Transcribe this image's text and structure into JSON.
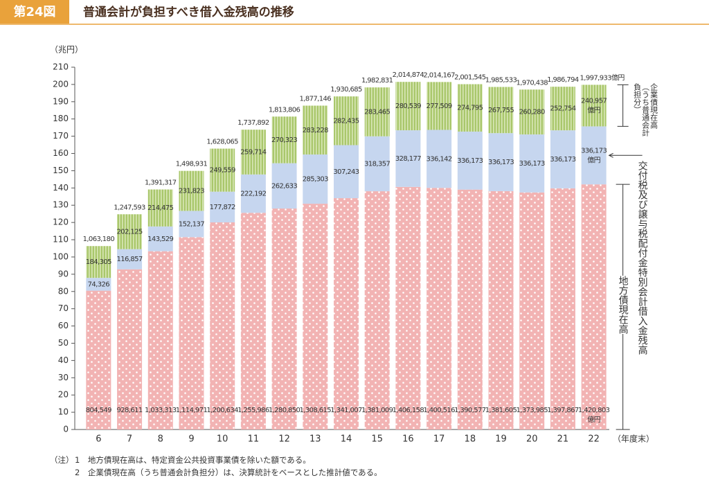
{
  "chart_data": {
    "type": "stacked-bar",
    "figure_number": "第24図",
    "title": "普通会計が負担すべき借入金残高の推移",
    "y_axis_label": "（兆円）",
    "x_axis_label": "（年度末）",
    "categories": [
      "6",
      "7",
      "8",
      "9",
      "10",
      "11",
      "12",
      "13",
      "14",
      "15",
      "16",
      "17",
      "18",
      "19",
      "20",
      "21",
      "22"
    ],
    "ylim": [
      0,
      210
    ],
    "yticks": [
      0,
      10,
      20,
      30,
      40,
      50,
      60,
      70,
      80,
      90,
      100,
      110,
      120,
      130,
      140,
      150,
      160,
      170,
      180,
      190,
      200,
      210
    ],
    "unit_note": "億円",
    "series": [
      {
        "name": "地方債現在高",
        "color": "#f2b3b3",
        "values": [
          80.4549,
          92.8611,
          103.3313,
          111.4971,
          120.0634,
          125.5986,
          128.085,
          130.8615,
          134.1007,
          138.1009,
          140.6158,
          140.0516,
          139.0577,
          138.1605,
          137.3985,
          139.7867,
          142.0803
        ],
        "value_labels": [
          "804,549",
          "928,611",
          "1,033,313",
          "1,114,971",
          "1,200,634",
          "1,255,986",
          "1,280,850",
          "1,308,615",
          "1,341,007",
          "1,381,009",
          "1,406,158",
          "1,400,516",
          "1,390,577",
          "1,381,605",
          "1,373,985",
          "1,397,867",
          "1,420,803"
        ]
      },
      {
        "name": "交付税及び譲与税配付金特別会計借入金残高",
        "color": "#c6d6ef",
        "values": [
          7.4326,
          11.6857,
          14.3529,
          15.2137,
          17.7872,
          22.2192,
          26.2633,
          28.5303,
          30.7243,
          31.8357,
          32.8177,
          33.6142,
          33.6173,
          33.6173,
          33.6173,
          33.6173,
          33.6173
        ],
        "value_labels": [
          "74,326",
          "116,857",
          "143,529",
          "152,137",
          "177,872",
          "222,192",
          "262,633",
          "285,303",
          "307,243",
          "318,357",
          "328,177",
          "336,142",
          "336,173",
          "336,173",
          "336,173",
          "336,173",
          "336,173"
        ]
      },
      {
        "name": "企業債現在高（うち普通会計負担分）",
        "color": "#a9c76b",
        "values": [
          18.4305,
          20.2125,
          21.4475,
          23.1823,
          24.9559,
          25.9714,
          27.0323,
          28.3228,
          28.2435,
          28.3465,
          28.0539,
          27.7509,
          27.4795,
          26.7755,
          26.028,
          25.2754,
          24.0957
        ],
        "value_labels": [
          "184,305",
          "202,125",
          "214,475",
          "231,823",
          "249,559",
          "259,714",
          "270,323",
          "283,228",
          "282,435",
          "283,465",
          "280,539",
          "277,509",
          "274,795",
          "267,755",
          "260,280",
          "252,754",
          "240,957"
        ]
      }
    ],
    "totals": {
      "values": [
        106.318,
        124.7593,
        139.1317,
        149.8931,
        162.8065,
        173.7892,
        181.3806,
        187.7146,
        193.0685,
        198.2831,
        201.4874,
        201.4167,
        200.1545,
        198.5533,
        197.0438,
        198.6794,
        199.7933
      ],
      "value_labels": [
        "1,063,180",
        "1,247,593",
        "1,391,317",
        "1,498,931",
        "1,628,065",
        "1,737,892",
        "1,813,806",
        "1,877,146",
        "1,930,685",
        "1,982,831",
        "2,014,874",
        "2,014,167",
        "2,001,545",
        "1,985,533",
        "1,970,438",
        "1,986,794",
        "1,997,933億円"
      ]
    },
    "notes": [
      "（注）",
      "1　地方債現在高は、特定資金公共投資事業債を除いた額である。",
      "2　企業債現在高（うち普通会計負担分）は、決算統計をベースとした推計値である。"
    ]
  }
}
